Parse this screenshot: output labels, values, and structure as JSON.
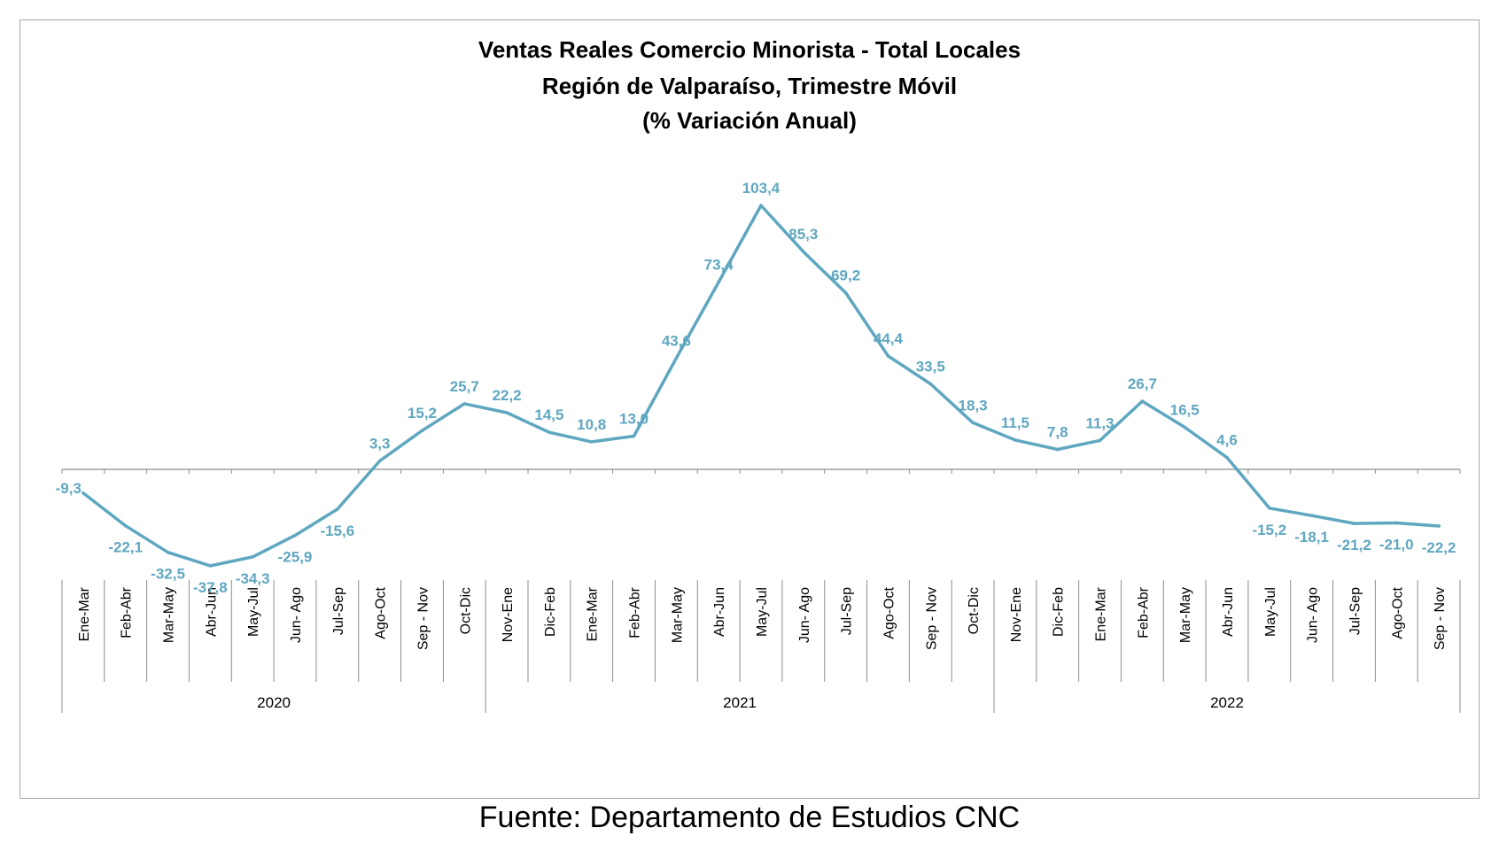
{
  "chart_data": {
    "type": "line",
    "title_lines": [
      "Ventas Reales Comercio Minorista - Total Locales",
      "Región de Valparaíso, Trimestre Móvil",
      "(% Variación Anual)"
    ],
    "categories": [
      "Ene-Mar",
      "Feb-Abr",
      "Mar-May",
      "Abr-Jun",
      "May-Jul",
      "Jun- Ago",
      "Jul-Sep",
      "Ago-Oct",
      "Sep - Nov",
      "Oct-Dic",
      "Nov-Ene",
      "Dic-Feb",
      "Ene-Mar",
      "Feb-Abr",
      "Mar-May",
      "Abr-Jun",
      "May-Jul",
      "Jun- Ago",
      "Jul-Sep",
      "Ago-Oct",
      "Sep - Nov",
      "Oct-Dic",
      "Nov-Ene",
      "Dic-Feb",
      "Ene-Mar",
      "Feb-Abr",
      "Mar-May",
      "Abr-Jun",
      "May-Jul",
      "Jun- Ago",
      "Jul-Sep",
      "Ago-Oct",
      "Sep - Nov"
    ],
    "values": [
      -9.3,
      -22.1,
      -32.5,
      -37.8,
      -34.3,
      -25.9,
      -15.6,
      3.3,
      15.2,
      25.7,
      22.2,
      14.5,
      10.8,
      13.0,
      43.6,
      73.4,
      103.4,
      85.3,
      69.2,
      44.4,
      33.5,
      18.3,
      11.5,
      7.8,
      11.3,
      26.7,
      16.5,
      4.6,
      -15.2,
      -18.1,
      -21.2,
      -21.0,
      -22.2
    ],
    "data_labels": [
      "-9,3",
      "-22,1",
      "-32,5",
      "-37,8",
      "-34,3",
      "-25,9",
      "-15,6",
      "3,3",
      "15,2",
      "25,7",
      "22,2",
      "14,5",
      "10,8",
      "13,0",
      "43,6",
      "73,4",
      "103,4",
      "85,3",
      "69,2",
      "44,4",
      "33,5",
      "18,3",
      "11,5",
      "7,8",
      "11,3",
      "26,7",
      "16,5",
      "4,6",
      "-15,2",
      "-18,1",
      "-21,2",
      "-21,0",
      "-22,2"
    ],
    "year_groups": [
      {
        "label": "2020",
        "count": 10
      },
      {
        "label": "2021",
        "count": 12
      },
      {
        "label": "2022",
        "count": 11
      }
    ],
    "line_color": "#5fa7c0",
    "xlabel": "",
    "ylabel": "",
    "ylim": [
      -50,
      120
    ],
    "grid": false,
    "legend": "none"
  },
  "source_note": "Fuente: Departamento de Estudios CNC"
}
